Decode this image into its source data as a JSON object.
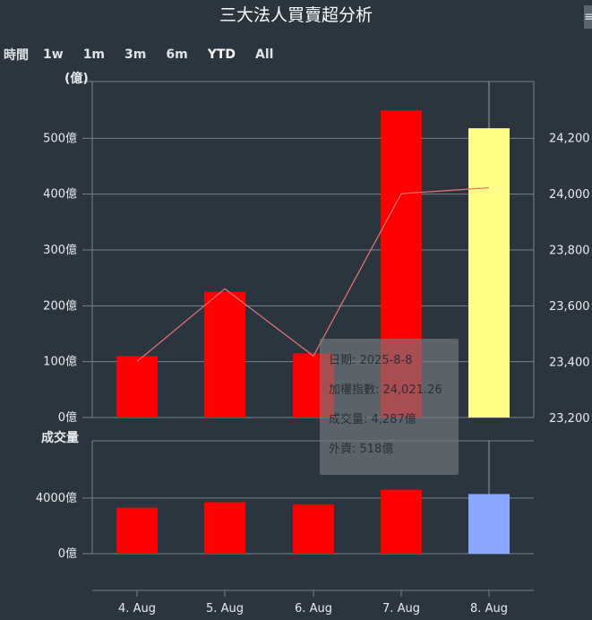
{
  "title": "三大法人買賣超分析",
  "menu_icon": "hamburger-menu-icon",
  "range_selector": {
    "label": "時間",
    "buttons": [
      "1w",
      "1m",
      "3m",
      "6m",
      "YTD",
      "All"
    ],
    "selected": "YTD"
  },
  "tooltip": {
    "date": "日期: 2025-8-8",
    "index": "加權指數: 24,021.26",
    "volume": "成交量: 4,287億",
    "foreign": "外資: 518億"
  },
  "chart_data": [
    {
      "type": "bar",
      "categories": [
        "4. Aug",
        "5. Aug",
        "6. Aug",
        "7. Aug",
        "8. Aug"
      ],
      "series": [
        {
          "values": [
            110,
            225,
            115,
            550,
            518
          ],
          "color": "#ff0000",
          "highlight_color": "#ffff88",
          "highlight_index": 4
        },
        {
          "name": "加權指數",
          "type": "line",
          "axis": "right",
          "values": [
            23400,
            23660,
            23420,
            24000,
            24021.26
          ],
          "color": "#e87878"
        }
      ],
      "ylabel": "(億)",
      "yticks": [
        0,
        100,
        200,
        300,
        400,
        500
      ],
      "ytick_labels": [
        "0億",
        "100億",
        "200億",
        "300億",
        "400億",
        "500億"
      ],
      "ylim": [
        0,
        600
      ],
      "y2ticks": [
        23200,
        23400,
        23600,
        23800,
        24000,
        24200
      ],
      "y2tick_labels": [
        "23,200",
        "23,400",
        "23,600",
        "23,800",
        "24,000",
        "24,200"
      ],
      "y2lim": [
        23200,
        24400
      ],
      "grid": true
    },
    {
      "type": "bar",
      "categories": [
        "4. Aug",
        "5. Aug",
        "6. Aug",
        "7. Aug",
        "8. Aug"
      ],
      "series": [
        {
          "values": [
            3300,
            3700,
            3550,
            4600,
            4287
          ],
          "color": "#ff0000",
          "highlight_color": "#88a8ff",
          "highlight_index": 4
        }
      ],
      "ylabel": "成交量",
      "yticks": [
        0,
        4000
      ],
      "ytick_labels": [
        "0億",
        "4000億"
      ],
      "ylim": [
        0,
        8000
      ],
      "grid": true
    }
  ]
}
